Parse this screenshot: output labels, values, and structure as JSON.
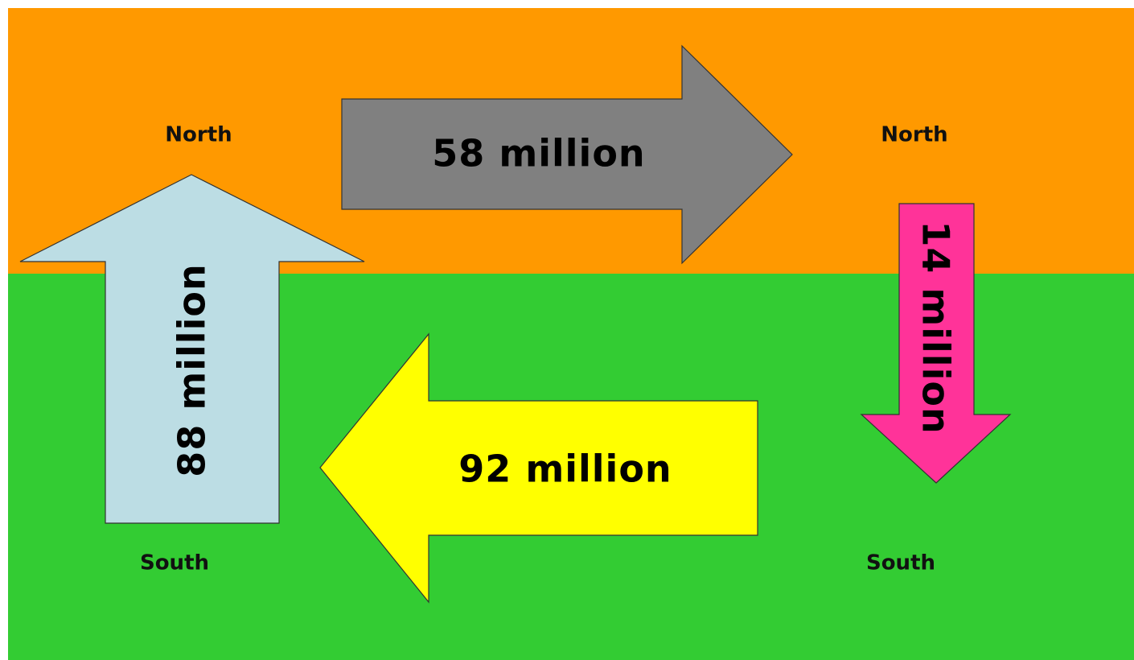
{
  "nodes": [
    {
      "label": "North"
    },
    {
      "label": "North"
    },
    {
      "label": "South"
    },
    {
      "label": "South"
    }
  ],
  "arrows": [
    {
      "label": "58 million"
    },
    {
      "label": "14 million"
    },
    {
      "label": "92 million"
    },
    {
      "label": "88 million"
    }
  ]
}
